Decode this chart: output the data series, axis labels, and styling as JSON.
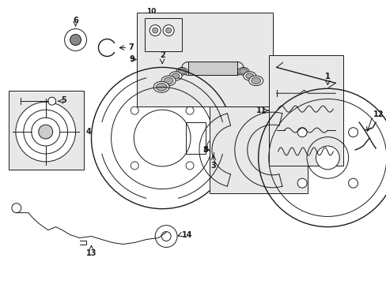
{
  "bg_color": "#ffffff",
  "line_color": "#1a1a1a",
  "box_fill": "#e8e8e8",
  "fig_width": 4.89,
  "fig_height": 3.6,
  "dpi": 100
}
